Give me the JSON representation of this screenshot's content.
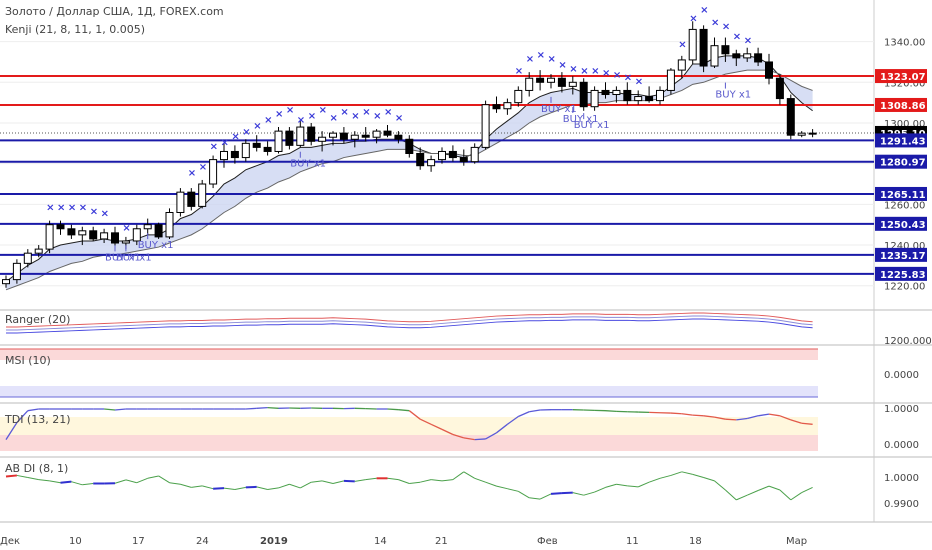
{
  "header": {
    "title": "Золото / Доллар США, 1Д, FOREX.com",
    "indicator": "Kenji (21, 8, 11, 1, 0.005)"
  },
  "colors": {
    "candle_up": "#ffffff",
    "candle_down": "#000000",
    "level_red": "#e31a1a",
    "level_blue": "#1a1aa8",
    "signal_x": "#3a3ad8",
    "band_fill": "#c9d3f0",
    "band_fill_up": "#d6f0c8",
    "tag_dark": "#000000",
    "msi_upper_fill": "#fbd9d9",
    "msi_lower_fill": "#e3e3fb",
    "tdi_fill": "#fff7dd"
  },
  "chart_data": [
    {
      "type": "candlestick",
      "title": "Золото / Доллар США, 1Д, FOREX.com",
      "ylim": [
        1212,
        1358
      ],
      "y_ticks": [
        1220,
        1240,
        1260,
        1280,
        1300,
        1320,
        1340
      ],
      "x_ticks": [
        "Дек",
        "10",
        "17",
        "24",
        "2019",
        "14",
        "21",
        "Фев",
        "11",
        "18",
        "Мар"
      ],
      "ohlc": [
        [
          1221,
          1225,
          1219,
          1223
        ],
        [
          1223,
          1233,
          1221,
          1231
        ],
        [
          1231,
          1238,
          1229,
          1236
        ],
        [
          1236,
          1240,
          1234,
          1238
        ],
        [
          1238,
          1252,
          1236,
          1250
        ],
        [
          1250,
          1252,
          1245,
          1248
        ],
        [
          1248,
          1250,
          1243,
          1245
        ],
        [
          1245,
          1249,
          1240,
          1247
        ],
        [
          1247,
          1249,
          1242,
          1243
        ],
        [
          1243,
          1248,
          1241,
          1246
        ],
        [
          1246,
          1249,
          1239,
          1241
        ],
        [
          1241,
          1244,
          1238,
          1242
        ],
        [
          1242,
          1250,
          1240,
          1248
        ],
        [
          1248,
          1253,
          1245,
          1250
        ],
        [
          1250,
          1251,
          1243,
          1244
        ],
        [
          1244,
          1258,
          1243,
          1256
        ],
        [
          1256,
          1268,
          1254,
          1266
        ],
        [
          1266,
          1268,
          1257,
          1259
        ],
        [
          1259,
          1272,
          1258,
          1270
        ],
        [
          1270,
          1284,
          1268,
          1282
        ],
        [
          1282,
          1290,
          1278,
          1286
        ],
        [
          1286,
          1289,
          1280,
          1283
        ],
        [
          1283,
          1292,
          1281,
          1290
        ],
        [
          1290,
          1294,
          1286,
          1288
        ],
        [
          1288,
          1291,
          1284,
          1286
        ],
        [
          1286,
          1298,
          1285,
          1296
        ],
        [
          1296,
          1298,
          1287,
          1289
        ],
        [
          1289,
          1301,
          1288,
          1298
        ],
        [
          1298,
          1300,
          1289,
          1291
        ],
        [
          1291,
          1296,
          1286,
          1293
        ],
        [
          1293,
          1296,
          1289,
          1295
        ],
        [
          1295,
          1298,
          1290,
          1292
        ],
        [
          1292,
          1296,
          1288,
          1294
        ],
        [
          1294,
          1298,
          1291,
          1293
        ],
        [
          1293,
          1297,
          1290,
          1296
        ],
        [
          1296,
          1299,
          1293,
          1294
        ],
        [
          1294,
          1296,
          1290,
          1292
        ],
        [
          1292,
          1294,
          1283,
          1285
        ],
        [
          1285,
          1288,
          1277,
          1279
        ],
        [
          1279,
          1284,
          1276,
          1282
        ],
        [
          1282,
          1288,
          1280,
          1286
        ],
        [
          1286,
          1289,
          1281,
          1283
        ],
        [
          1283,
          1287,
          1279,
          1281
        ],
        [
          1281,
          1290,
          1280,
          1288
        ],
        [
          1288,
          1311,
          1287,
          1309
        ],
        [
          1309,
          1313,
          1305,
          1307
        ],
        [
          1307,
          1312,
          1304,
          1310
        ],
        [
          1310,
          1318,
          1308,
          1316
        ],
        [
          1316,
          1325,
          1313,
          1322
        ],
        [
          1322,
          1326,
          1316,
          1320
        ],
        [
          1320,
          1324,
          1317,
          1322
        ],
        [
          1322,
          1325,
          1315,
          1318
        ],
        [
          1318,
          1323,
          1314,
          1320
        ],
        [
          1320,
          1322,
          1306,
          1308
        ],
        [
          1308,
          1318,
          1306,
          1316
        ],
        [
          1316,
          1320,
          1312,
          1314
        ],
        [
          1314,
          1318,
          1310,
          1316
        ],
        [
          1316,
          1320,
          1309,
          1311
        ],
        [
          1311,
          1316,
          1309,
          1313
        ],
        [
          1313,
          1318,
          1310,
          1311
        ],
        [
          1311,
          1318,
          1309,
          1316
        ],
        [
          1316,
          1327,
          1314,
          1326
        ],
        [
          1326,
          1333,
          1322,
          1331
        ],
        [
          1331,
          1350,
          1329,
          1346
        ],
        [
          1346,
          1348,
          1325,
          1328
        ],
        [
          1328,
          1342,
          1327,
          1338
        ],
        [
          1338,
          1342,
          1330,
          1334
        ],
        [
          1334,
          1336,
          1328,
          1332
        ],
        [
          1332,
          1337,
          1330,
          1334
        ],
        [
          1334,
          1337,
          1328,
          1330
        ],
        [
          1330,
          1334,
          1319,
          1322
        ],
        [
          1322,
          1324,
          1309,
          1312
        ],
        [
          1312,
          1314,
          1292,
          1294
        ],
        [
          1294,
          1296,
          1293,
          1295
        ],
        [
          1295,
          1297,
          1293,
          1295
        ]
      ],
      "ema_fast": [
        1222,
        1226,
        1230,
        1233,
        1238,
        1240,
        1241,
        1242,
        1242,
        1243,
        1242,
        1242,
        1243,
        1245,
        1245,
        1248,
        1253,
        1255,
        1259,
        1264,
        1270,
        1273,
        1277,
        1279,
        1281,
        1284,
        1285,
        1288,
        1288,
        1289,
        1290,
        1290,
        1291,
        1291,
        1292,
        1292,
        1292,
        1290,
        1287,
        1285,
        1285,
        1284,
        1283,
        1285,
        1292,
        1297,
        1301,
        1305,
        1310,
        1313,
        1315,
        1316,
        1317,
        1315,
        1315,
        1315,
        1315,
        1314,
        1314,
        1313,
        1314,
        1318,
        1322,
        1329,
        1329,
        1332,
        1333,
        1333,
        1333,
        1332,
        1329,
        1323,
        1315,
        1310,
        1306
      ],
      "ema_slow": [
        1218,
        1220,
        1222,
        1224,
        1227,
        1229,
        1231,
        1232,
        1234,
        1235,
        1235,
        1236,
        1237,
        1238,
        1239,
        1241,
        1243,
        1245,
        1248,
        1252,
        1256,
        1259,
        1263,
        1266,
        1268,
        1271,
        1273,
        1276,
        1278,
        1280,
        1281,
        1283,
        1284,
        1285,
        1286,
        1287,
        1287,
        1287,
        1286,
        1285,
        1285,
        1285,
        1284,
        1284,
        1287,
        1290,
        1293,
        1296,
        1300,
        1303,
        1305,
        1307,
        1309,
        1309,
        1310,
        1310,
        1311,
        1311,
        1311,
        1311,
        1312,
        1314,
        1316,
        1319,
        1320,
        1322,
        1324,
        1325,
        1326,
        1326,
        1326,
        1324,
        1321,
        1318,
        1316
      ],
      "levels": [
        {
          "value": 1323.07,
          "label": "1323.07",
          "color": "red"
        },
        {
          "value": 1308.86,
          "label": "1308.86",
          "color": "red"
        },
        {
          "value": 1295.1,
          "label": "1295.10",
          "color": "dark"
        },
        {
          "value": 1291.43,
          "label": "1291.43",
          "color": "blue"
        },
        {
          "value": 1280.97,
          "label": "1280.97",
          "color": "blue"
        },
        {
          "value": 1265.11,
          "label": "1265.11",
          "color": "blue"
        },
        {
          "value": 1250.43,
          "label": "1250.43",
          "color": "blue"
        },
        {
          "value": 1235.17,
          "label": "1235.17",
          "color": "blue"
        },
        {
          "value": 1225.83,
          "label": "1225.83",
          "color": "blue"
        }
      ],
      "x_signals": [
        {
          "i": 4,
          "v": 1257
        },
        {
          "i": 5,
          "v": 1257
        },
        {
          "i": 6,
          "v": 1257
        },
        {
          "i": 7,
          "v": 1257
        },
        {
          "i": 8,
          "v": 1255
        },
        {
          "i": 9,
          "v": 1254
        },
        {
          "i": 11,
          "v": 1247
        },
        {
          "i": 17,
          "v": 1274
        },
        {
          "i": 18,
          "v": 1277
        },
        {
          "i": 19,
          "v": 1287
        },
        {
          "i": 20,
          "v": 1289
        },
        {
          "i": 21,
          "v": 1292
        },
        {
          "i": 22,
          "v": 1294
        },
        {
          "i": 23,
          "v": 1297
        },
        {
          "i": 24,
          "v": 1300
        },
        {
          "i": 25,
          "v": 1303
        },
        {
          "i": 26,
          "v": 1305
        },
        {
          "i": 27,
          "v": 1300
        },
        {
          "i": 28,
          "v": 1302
        },
        {
          "i": 29,
          "v": 1305
        },
        {
          "i": 30,
          "v": 1301
        },
        {
          "i": 31,
          "v": 1304
        },
        {
          "i": 32,
          "v": 1302
        },
        {
          "i": 33,
          "v": 1304
        },
        {
          "i": 34,
          "v": 1302
        },
        {
          "i": 35,
          "v": 1304
        },
        {
          "i": 36,
          "v": 1301
        },
        {
          "i": 47,
          "v": 1324
        },
        {
          "i": 48,
          "v": 1330
        },
        {
          "i": 49,
          "v": 1332
        },
        {
          "i": 50,
          "v": 1330
        },
        {
          "i": 51,
          "v": 1327
        },
        {
          "i": 52,
          "v": 1325
        },
        {
          "i": 53,
          "v": 1324
        },
        {
          "i": 54,
          "v": 1324
        },
        {
          "i": 55,
          "v": 1323
        },
        {
          "i": 56,
          "v": 1322
        },
        {
          "i": 57,
          "v": 1321
        },
        {
          "i": 58,
          "v": 1319
        },
        {
          "i": 62,
          "v": 1337
        },
        {
          "i": 63,
          "v": 1350
        },
        {
          "i": 64,
          "v": 1354
        },
        {
          "i": 65,
          "v": 1348
        },
        {
          "i": 66,
          "v": 1346
        },
        {
          "i": 67,
          "v": 1341
        },
        {
          "i": 68,
          "v": 1339
        }
      ],
      "buy_annotations": [
        {
          "i": 11,
          "v": 1232,
          "text": "BUY x1"
        },
        {
          "i": 13,
          "v": 1238,
          "text": "BUY x1"
        },
        {
          "i": 10,
          "v": 1232,
          "text": "BUY x1"
        },
        {
          "i": 27,
          "v": 1278,
          "text": "BUY x1"
        },
        {
          "i": 50,
          "v": 1305,
          "text": "BUY x1"
        },
        {
          "i": 52,
          "v": 1300,
          "text": "BUY x1"
        },
        {
          "i": 53,
          "v": 1297,
          "text": "BUY x1"
        },
        {
          "i": 66,
          "v": 1312,
          "text": "BUY x1"
        }
      ]
    },
    {
      "type": "line",
      "title": "Ranger (20)",
      "y_ticks": [
        "1200.0000"
      ],
      "series": [
        {
          "values": [
            48,
            48,
            49,
            50,
            51,
            52,
            53,
            54,
            55,
            56,
            57,
            58,
            59,
            60,
            61,
            62,
            62,
            63,
            63,
            64,
            64,
            65,
            66,
            66,
            67,
            67,
            68,
            68,
            68,
            68,
            69,
            68,
            67,
            66,
            64,
            62,
            61,
            60,
            60,
            61,
            63,
            65,
            67,
            69,
            71,
            73,
            74,
            75,
            76,
            76,
            77,
            77,
            78,
            78,
            78,
            77,
            77,
            77,
            76,
            76,
            77,
            78,
            79,
            80,
            80,
            79,
            78,
            77,
            76,
            75,
            73,
            70,
            66,
            62,
            60
          ]
        }
      ]
    },
    {
      "type": "line",
      "title": "MSI (10)",
      "y_ticks": [
        "0.0000"
      ]
    },
    {
      "type": "line",
      "title": "TDI (13, 21)",
      "y_ticks": [
        "1.0000",
        "0.0000"
      ],
      "series": [
        {
          "values": [
            0.1,
            0.6,
            0.95,
            1.0,
            1.0,
            1.0,
            1.0,
            1.0,
            1.0,
            1.0,
            0.97,
            1.0,
            1.0,
            1.0,
            1.0,
            1.0,
            1.0,
            1.0,
            1.0,
            1.0,
            1.0,
            1.0,
            1.0,
            1.02,
            1.04,
            1.02,
            1.03,
            1.02,
            1.03,
            1.02,
            1.02,
            1.01,
            1.02,
            1.01,
            1.0,
            1.0,
            0.98,
            0.95,
            0.7,
            0.55,
            0.4,
            0.25,
            0.15,
            0.1,
            0.12,
            0.3,
            0.55,
            0.78,
            0.92,
            0.97,
            0.98,
            0.98,
            0.98,
            0.97,
            0.96,
            0.95,
            0.93,
            0.92,
            0.91,
            0.9,
            0.89,
            0.88,
            0.86,
            0.82,
            0.8,
            0.76,
            0.7,
            0.68,
            0.72,
            0.8,
            0.85,
            0.8,
            0.68,
            0.58,
            0.55
          ]
        }
      ]
    },
    {
      "type": "line",
      "title": "AB DI (8, 1)",
      "y_ticks": [
        "1.0000",
        "0.9900"
      ],
      "series": [
        {
          "values": [
            1.0002,
            1.0006,
            0.9998,
            0.999,
            0.9985,
            0.9978,
            0.9982,
            0.997,
            0.9975,
            0.9975,
            0.9976,
            0.9989,
            0.9978,
            0.9995,
            1.0004,
            0.9978,
            0.9972,
            0.996,
            0.9966,
            0.9955,
            0.9957,
            0.9952,
            0.996,
            0.9962,
            0.9952,
            0.9958,
            0.9972,
            0.9958,
            0.998,
            0.9985,
            0.9975,
            0.9985,
            0.9983,
            0.999,
            0.9995,
            0.9995,
            0.999,
            0.9975,
            0.998,
            0.999,
            0.9985,
            0.999,
            1.002,
            0.9995,
            0.998,
            0.9965,
            0.9955,
            0.9945,
            0.992,
            0.9915,
            0.9935,
            0.9938,
            0.994,
            0.993,
            0.9942,
            0.996,
            0.9972,
            0.9966,
            0.9962,
            0.998,
            0.9995,
            1.0006,
            1.002,
            1.001,
            0.9998,
            0.9985,
            0.995,
            0.9912,
            0.993,
            0.9948,
            0.9965,
            0.995,
            0.9912,
            0.994,
            0.996
          ]
        }
      ]
    }
  ]
}
